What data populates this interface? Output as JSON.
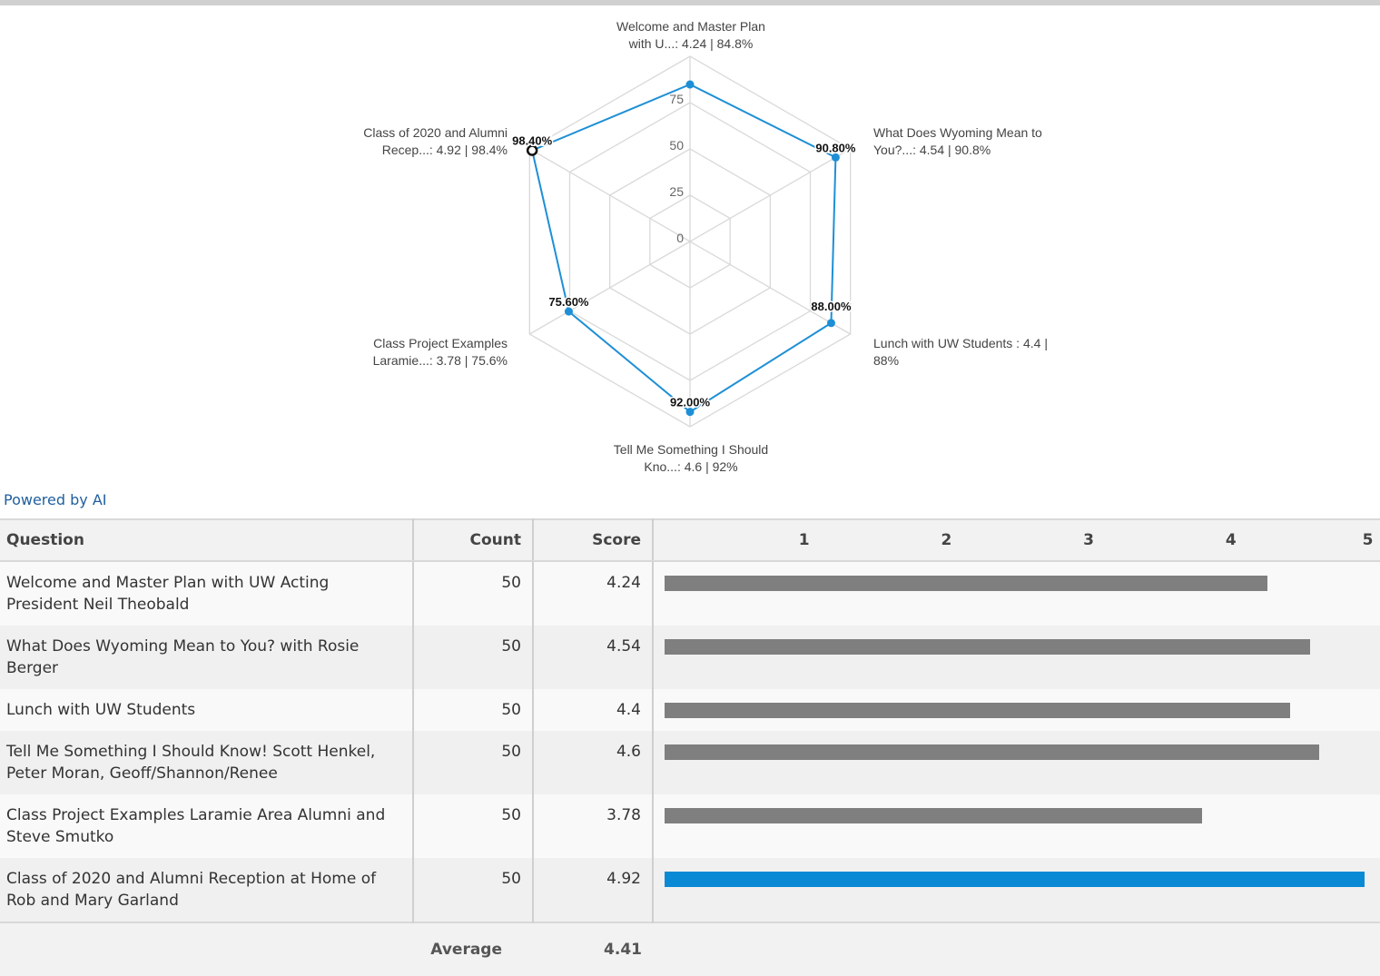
{
  "chart_data": [
    {
      "type": "radar",
      "axes": [
        {
          "label_line1": "Welcome and Master Plan",
          "label_line2": "with U...: 4.24 | 84.8%",
          "value": 84.8,
          "value_label": ""
        },
        {
          "label_line1": "What Does Wyoming Mean to",
          "label_line2": "You?...: 4.54 | 90.8%",
          "value": 90.8,
          "value_label": "90.80%"
        },
        {
          "label_line1": "Lunch with UW Students : 4.4 |",
          "label_line2": "88%",
          "value": 88.0,
          "value_label": "88.00%"
        },
        {
          "label_line1": "Tell Me Something I Should",
          "label_line2": "Kno...: 4.6 | 92%",
          "value": 92.0,
          "value_label": "92.00%"
        },
        {
          "label_line1": "Class Project Examples",
          "label_line2": "Laramie...: 3.78 | 75.6%",
          "value": 75.6,
          "value_label": "75.60%"
        },
        {
          "label_line1": "Class of 2020 and Alumni",
          "label_line2": "Recep...: 4.92 | 98.4%",
          "value": 98.4,
          "value_label": "98.40%"
        }
      ],
      "radial_ticks": [
        "0",
        "25",
        "50",
        "75"
      ],
      "range": [
        0,
        100
      ],
      "grid": true,
      "series_color": "#1e8fd6",
      "highlight_index": 5
    },
    {
      "type": "table",
      "columns": [
        "Question",
        "Count",
        "Score"
      ],
      "scale_ticks": [
        1,
        2,
        3,
        4,
        5
      ],
      "scale_range": [
        0,
        5
      ],
      "rows": [
        {
          "question": "Welcome and Master Plan with UW Acting President Neil Theobald",
          "count": "50",
          "score": "4.24",
          "value": 4.24,
          "highlight": false
        },
        {
          "question": "What Does Wyoming Mean to You? with Rosie Berger",
          "count": "50",
          "score": "4.54",
          "value": 4.54,
          "highlight": false
        },
        {
          "question": "Lunch with UW Students",
          "count": "50",
          "score": "4.4",
          "value": 4.4,
          "highlight": false
        },
        {
          "question": "Tell Me Something I Should Know!  Scott Henkel, Peter Moran, Geoff/Shannon/Renee",
          "count": "50",
          "score": "4.6",
          "value": 4.6,
          "highlight": false
        },
        {
          "question": "Class Project Examples Laramie Area Alumni and Steve Smutko",
          "count": "50",
          "score": "3.78",
          "value": 3.78,
          "highlight": false
        },
        {
          "question": "Class of 2020 and Alumni Reception at Home of Rob and Mary Garland",
          "count": "50",
          "score": "4.92",
          "value": 4.92,
          "highlight": true
        }
      ],
      "average_label": "Average",
      "average_value": "4.41",
      "bar_color": "#7f7f7f",
      "highlight_color": "#0a8ad4"
    }
  ],
  "powered_by": "Powered by AI"
}
